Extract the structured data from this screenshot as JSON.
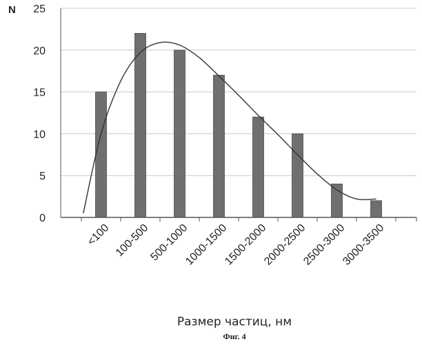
{
  "chart_data": {
    "type": "bar",
    "title": "",
    "xlabel": "Размер частиц, нм",
    "ylabel": "N",
    "caption": "Фиг. 4",
    "ylim": [
      0,
      25
    ],
    "yticks": [
      0,
      5,
      10,
      15,
      20,
      25
    ],
    "grid": true,
    "legend": "none",
    "categories": [
      "<100",
      "100-500",
      "500-1000",
      "1000-1500",
      "1500-2000",
      "2000-2500",
      "2500-3000",
      "3000-3500"
    ],
    "series": [
      {
        "type": "bar",
        "values": [
          15,
          22,
          20,
          17,
          12,
          10,
          4,
          2
        ]
      },
      {
        "type": "line",
        "note_shape": "smooth trend curve",
        "x_offsets": [
          -0.45,
          0.0,
          0.5,
          1.0,
          1.5,
          2.0,
          2.5,
          3.0,
          3.5,
          4.0,
          4.5,
          5.0,
          5.5,
          6.0,
          6.5,
          7.0
        ],
        "values": [
          0.5,
          10.0,
          16.3,
          19.7,
          20.9,
          20.6,
          19.1,
          16.9,
          14.6,
          12.2,
          9.9,
          7.5,
          5.2,
          3.3,
          2.2,
          2.2
        ]
      }
    ],
    "colors": {
      "bar": "#6f6f6f",
      "bar_edge": "#4a4a4a",
      "line": "#333333",
      "grid": "#c8c8c8",
      "axis": "#555555"
    }
  }
}
